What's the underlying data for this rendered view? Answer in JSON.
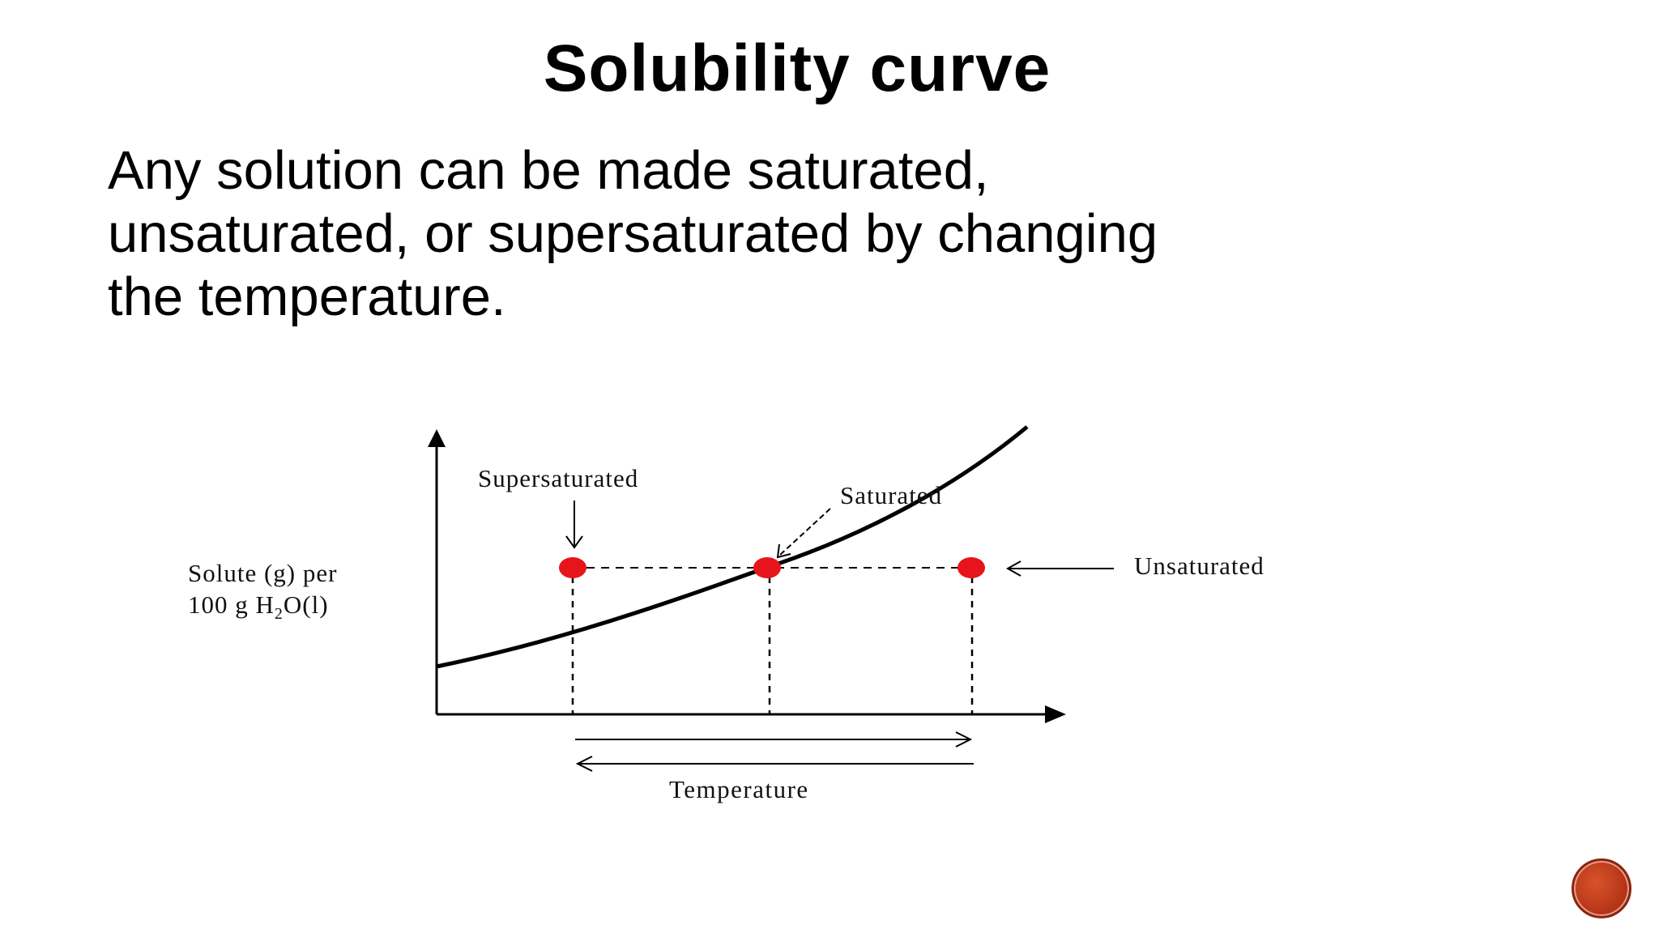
{
  "slide": {
    "title": "Solubility curve",
    "body_lines": [
      "Any solution can be made saturated,",
      "unsaturated, or supersaturated by changing",
      "the temperature."
    ]
  },
  "diagram": {
    "y_axis_label_line1": "Solute (g) per",
    "y_axis_label_line2_pre": "100 g H",
    "y_axis_label_line2_sub": "2",
    "y_axis_label_line2_post": "O(l)",
    "x_axis_label": "Temperature",
    "labels": {
      "supersaturated": "Supersaturated",
      "saturated": "Saturated",
      "unsaturated": "Unsaturated"
    },
    "point_color": "#e8141b",
    "curve_color": "#000000"
  },
  "nav": {
    "button_color": "#b8371a"
  }
}
